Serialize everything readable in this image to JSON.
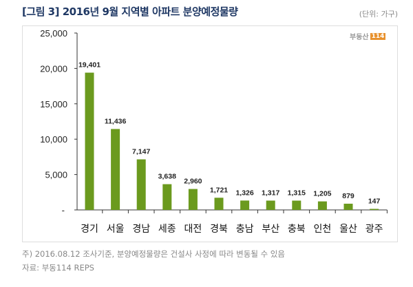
{
  "header": {
    "title": "[그림 3] 2016년 9월 지역별 아파트 분양예정물량",
    "unit": "(단위: 가구)",
    "logo_text": "부동산114"
  },
  "chart_data": {
    "type": "bar",
    "title": "[그림 3] 2016년 9월 지역별 아파트 분양예정물량",
    "categories": [
      "경기",
      "서울",
      "경남",
      "세종",
      "대전",
      "경북",
      "충남",
      "부산",
      "충북",
      "인천",
      "울산",
      "광주"
    ],
    "values": [
      19401,
      11436,
      7147,
      3638,
      2960,
      1721,
      1326,
      1317,
      1315,
      1205,
      879,
      147
    ],
    "data_labels": [
      "19,401",
      "11,436",
      "7,147",
      "3,638",
      "2,960",
      "1,721",
      "1,326",
      "1,317",
      "1,315",
      "1,205",
      "879",
      "147"
    ],
    "ylim": [
      0,
      25000
    ],
    "yticks": [
      0,
      5000,
      10000,
      15000,
      20000,
      25000
    ],
    "ytick_labels": [
      "-",
      "5,000",
      "10,000",
      "15,000",
      "20,000",
      "25,000"
    ],
    "grid": false,
    "bar_color": "#6b9a1e"
  },
  "footer": {
    "note": "주) 2016.08.12 조사기준, 분양예정물량은 건설사 사정에 따라 변동될 수 있음",
    "source": "자료: 부동114 REPS"
  }
}
